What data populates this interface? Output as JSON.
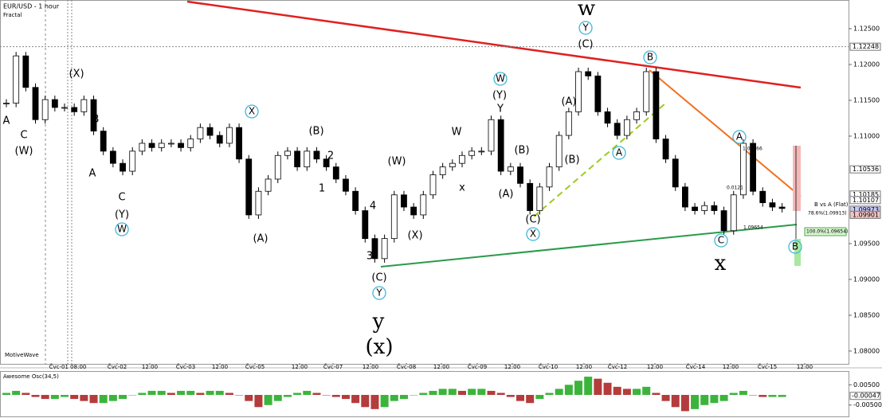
{
  "chart_data": [
    {
      "type": "candlestick",
      "title": "EUR/USD - 1 hour",
      "subtitle": "Fractal",
      "watermark": "MotiveWave",
      "values": [
        1.1146,
        1.1212,
        1.1168,
        1.1123,
        1.1151,
        1.114,
        1.114,
        1.1134,
        1.1151,
        1.1107,
        1.1079,
        1.1062,
        1.1051,
        1.1079,
        1.109,
        1.1084,
        1.109,
        1.109,
        1.1084,
        1.1096,
        1.1112,
        1.1101,
        1.109,
        1.1112,
        1.1068,
        1.099,
        1.1023,
        1.104,
        1.1073,
        1.1079,
        1.1057,
        1.1079,
        1.1068,
        1.1057,
        1.104,
        1.1023,
        1.0996,
        1.0957,
        1.0929,
        1.0957,
        1.1018,
        1.1001,
        1.099,
        1.1018,
        1.1046,
        1.1057,
        1.1062,
        1.1073,
        1.1079,
        1.1079,
        1.1123,
        1.1051,
        1.1057,
        1.1034,
        1.0996,
        1.1029,
        1.1057,
        1.1101,
        1.1134,
        1.119,
        1.1184,
        1.1134,
        1.1118,
        1.1101,
        1.1123,
        1.1134,
        1.119,
        1.1096,
        1.1068,
        1.1029,
        1.1001,
        1.0996,
        1.1003,
        1.0996,
        1.0968,
        1.1018,
        1.109,
        1.1023,
        1.1007,
        1.1001,
        1.0999
      ],
      "ylim": [
        1.0781,
        1.129
      ],
      "yticks": [
        {
          "value": 1.125,
          "label": "1.12500"
        },
        {
          "value": 1.12,
          "label": "1.12000"
        },
        {
          "value": 1.115,
          "label": "1.11500"
        },
        {
          "value": 1.11,
          "label": "1.11000"
        },
        {
          "value": 1.095,
          "label": "1.09500"
        },
        {
          "value": 1.09,
          "label": "1.09000"
        },
        {
          "value": 1.085,
          "label": "1.08500"
        },
        {
          "value": 1.08,
          "label": "1.08000"
        }
      ],
      "price_markers": [
        {
          "value": 1.12248,
          "label": "1.12248",
          "color": "#ffffff"
        },
        {
          "value": 1.10536,
          "label": "1.10536",
          "color": "#ffffff"
        },
        {
          "value": 1.10185,
          "label": "1.10185",
          "color": "#ffffff"
        },
        {
          "value": 1.10107,
          "label": "1.10107",
          "color": "#ffffff"
        },
        {
          "value": 1.09973,
          "label": "1.09973",
          "color": "#c8c8f4"
        },
        {
          "value": 1.09901,
          "label": "1.09901",
          "color": "#f4c4c4"
        }
      ],
      "x_labels": [
        "Čvc-01 08:00",
        "Čvc-02",
        "12:00",
        "Čvc-03",
        "12:00",
        "Čvc-05",
        "12:00",
        "Čvc-07",
        "12:00",
        "Čvc-08",
        "12:00",
        "Čvc-09",
        "12:00",
        "Čvc-10",
        "12:00",
        "Čvc-12",
        "12:00",
        "Čvc-14",
        "12:00",
        "Čvc-15",
        "12:00"
      ],
      "annotations": [
        {
          "text": "A",
          "color": "#e8742a"
        },
        {
          "text": "C",
          "color": "#e8742a"
        },
        {
          "text": "(W)",
          "color": "#9ac42a"
        },
        {
          "text": "(X)",
          "color": "#9ac42a"
        },
        {
          "text": "B",
          "color": "#e8742a"
        },
        {
          "text": "A",
          "color": "#e8742a"
        },
        {
          "text": "C",
          "color": "#e8742a"
        },
        {
          "text": "(Y)",
          "color": "#9ac42a"
        },
        {
          "text": "W",
          "color": "#3cb8d8",
          "circled": true
        },
        {
          "text": "X",
          "color": "#3cb8d8",
          "circled": true
        },
        {
          "text": "(B)",
          "color": "#9ac42a"
        },
        {
          "text": "2",
          "color": "#e8742a"
        },
        {
          "text": "1",
          "color": "#e8742a"
        },
        {
          "text": "(A)",
          "color": "#9ac42a"
        },
        {
          "text": "(W)",
          "color": "#9ac42a"
        },
        {
          "text": "4",
          "color": "#e8742a"
        },
        {
          "text": "3",
          "color": "#e8742a"
        },
        {
          "text": "(C)",
          "color": "#9ac42a"
        },
        {
          "text": "Y",
          "color": "#3cb8d8",
          "circled": true
        },
        {
          "text": "y",
          "color": "#b09ae0"
        },
        {
          "text": "(x)",
          "color": "#8b2a1a"
        },
        {
          "text": "(X)",
          "color": "#9ac42a"
        },
        {
          "text": "x",
          "color": "#e8742a"
        },
        {
          "text": "W",
          "color": "#e8742a"
        },
        {
          "text": "(Y)",
          "color": "#9ac42a"
        },
        {
          "text": "W",
          "color": "#3cb8d8",
          "circled": true
        },
        {
          "text": "Y",
          "color": "#e8742a"
        },
        {
          "text": "(B)",
          "color": "#9ac42a"
        },
        {
          "text": "(A)",
          "color": "#9ac42a"
        },
        {
          "text": "(C)",
          "color": "#9ac42a"
        },
        {
          "text": "X",
          "color": "#3cb8d8",
          "circled": true
        },
        {
          "text": "(A)",
          "color": "#9ac42a"
        },
        {
          "text": "(B)",
          "color": "#9ac42a"
        },
        {
          "text": "A",
          "color": "#3cb8d8",
          "circled": true
        },
        {
          "text": "(C)",
          "color": "#9ac42a"
        },
        {
          "text": "Y",
          "color": "#3cb8d8",
          "circled": true
        },
        {
          "text": "w",
          "color": "#b09ae0"
        },
        {
          "text": "B",
          "color": "#3cb8d8",
          "circled": true
        },
        {
          "text": "A",
          "color": "#3cb8d8",
          "circled": true
        },
        {
          "text": "C",
          "color": "#3cb8d8",
          "circled": true
        },
        {
          "text": "x",
          "color": "#b09ae0"
        },
        {
          "text": "B",
          "color": "#3cb8d8",
          "circled": true
        }
      ],
      "fib_labels": [
        "B vs A (Flat)",
        "78.6%(1.09913)",
        "100.0%(1.09654)",
        "1.08866",
        "1.09654",
        "0.0121"
      ]
    },
    {
      "type": "bar",
      "title": "Awesome Osc(34,5)",
      "values": [
        0.001,
        0.002,
        0.001,
        -0.001,
        -0.002,
        -0.002,
        -0.001,
        -0.002,
        -0.003,
        -0.004,
        -0.004,
        -0.003,
        -0.002,
        0.0,
        0.001,
        0.002,
        0.002,
        0.001,
        0.002,
        0.002,
        0.001,
        0.002,
        0.002,
        0.001,
        0.0,
        -0.003,
        -0.006,
        -0.005,
        -0.003,
        -0.001,
        0.001,
        0.002,
        0.001,
        0.0,
        -0.001,
        -0.002,
        -0.004,
        -0.006,
        -0.007,
        -0.006,
        -0.003,
        -0.002,
        0.0,
        0.001,
        0.002,
        0.003,
        0.003,
        0.002,
        0.003,
        0.003,
        0.002,
        0.001,
        -0.001,
        -0.003,
        -0.004,
        -0.002,
        0.001,
        0.003,
        0.005,
        0.007,
        0.009,
        0.008,
        0.006,
        0.004,
        0.003,
        0.003,
        0.004,
        0.001,
        -0.003,
        -0.006,
        -0.008,
        -0.007,
        -0.005,
        -0.004,
        -0.003,
        0.001,
        0.002,
        0.0,
        -0.001,
        -0.001,
        -0.001
      ],
      "up_color": "#3cb43c",
      "down_color": "#b43c3c",
      "ylim": [
        -0.0106,
        0.0114
      ],
      "yticks": [
        {
          "value": 0.005,
          "label": "0.00500"
        },
        {
          "value": -0.005,
          "label": "-0.00500"
        }
      ],
      "price_markers": [
        {
          "value": -0.00047,
          "label": "-0.00047",
          "color": "#ffffff"
        }
      ]
    }
  ]
}
